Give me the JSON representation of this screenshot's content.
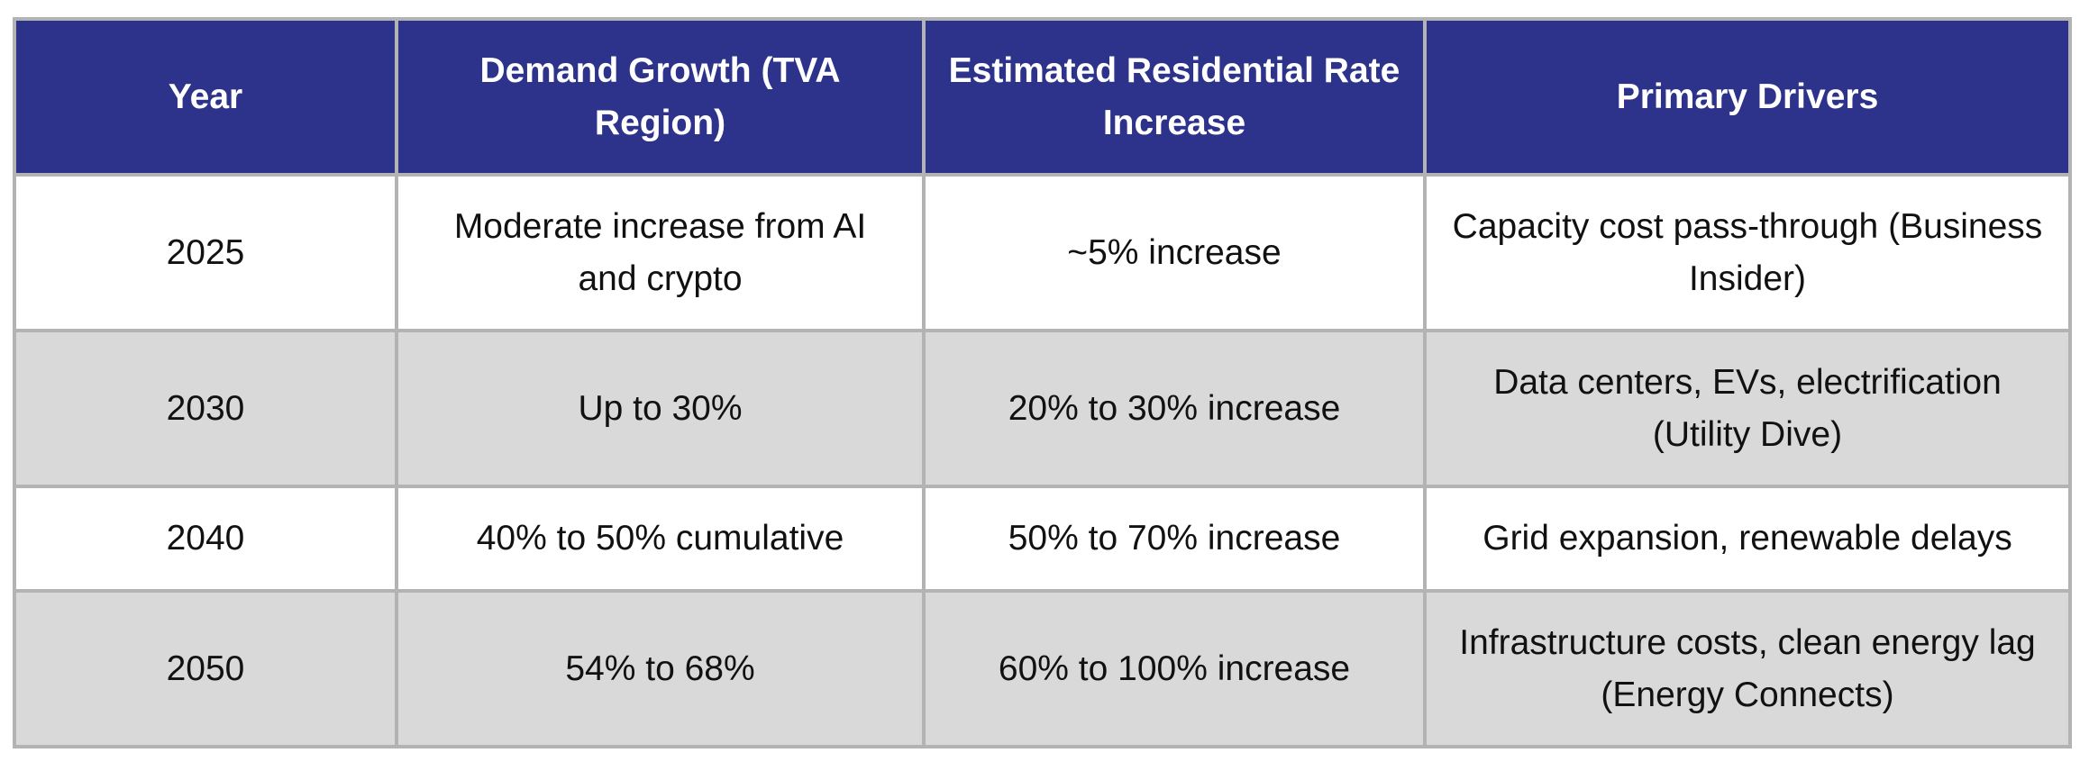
{
  "table": {
    "headers": [
      "Year",
      "Demand Growth (TVA Region)",
      "Estimated Residential Rate Increase",
      "Primary Drivers"
    ],
    "rows": [
      [
        "2025",
        "Moderate increase from AI and crypto",
        "~5% increase",
        "Capacity cost pass-through (Business Insider)"
      ],
      [
        "2030",
        "Up to 30%",
        "20% to 30% increase",
        "Data centers, EVs, electrification (Utility Dive)"
      ],
      [
        "2040",
        "40% to 50% cumulative",
        "50% to 70% increase",
        "Grid expansion, renewable delays"
      ],
      [
        "2050",
        "54% to 68%",
        "60% to 100% increase",
        "Infrastructure costs, clean energy lag (Energy Connects)"
      ]
    ]
  },
  "colors": {
    "header_bg": "#2d338a",
    "header_text": "#ffffff",
    "row_alt_bg": "#d9d9d9",
    "border": "#b3b3b3"
  }
}
